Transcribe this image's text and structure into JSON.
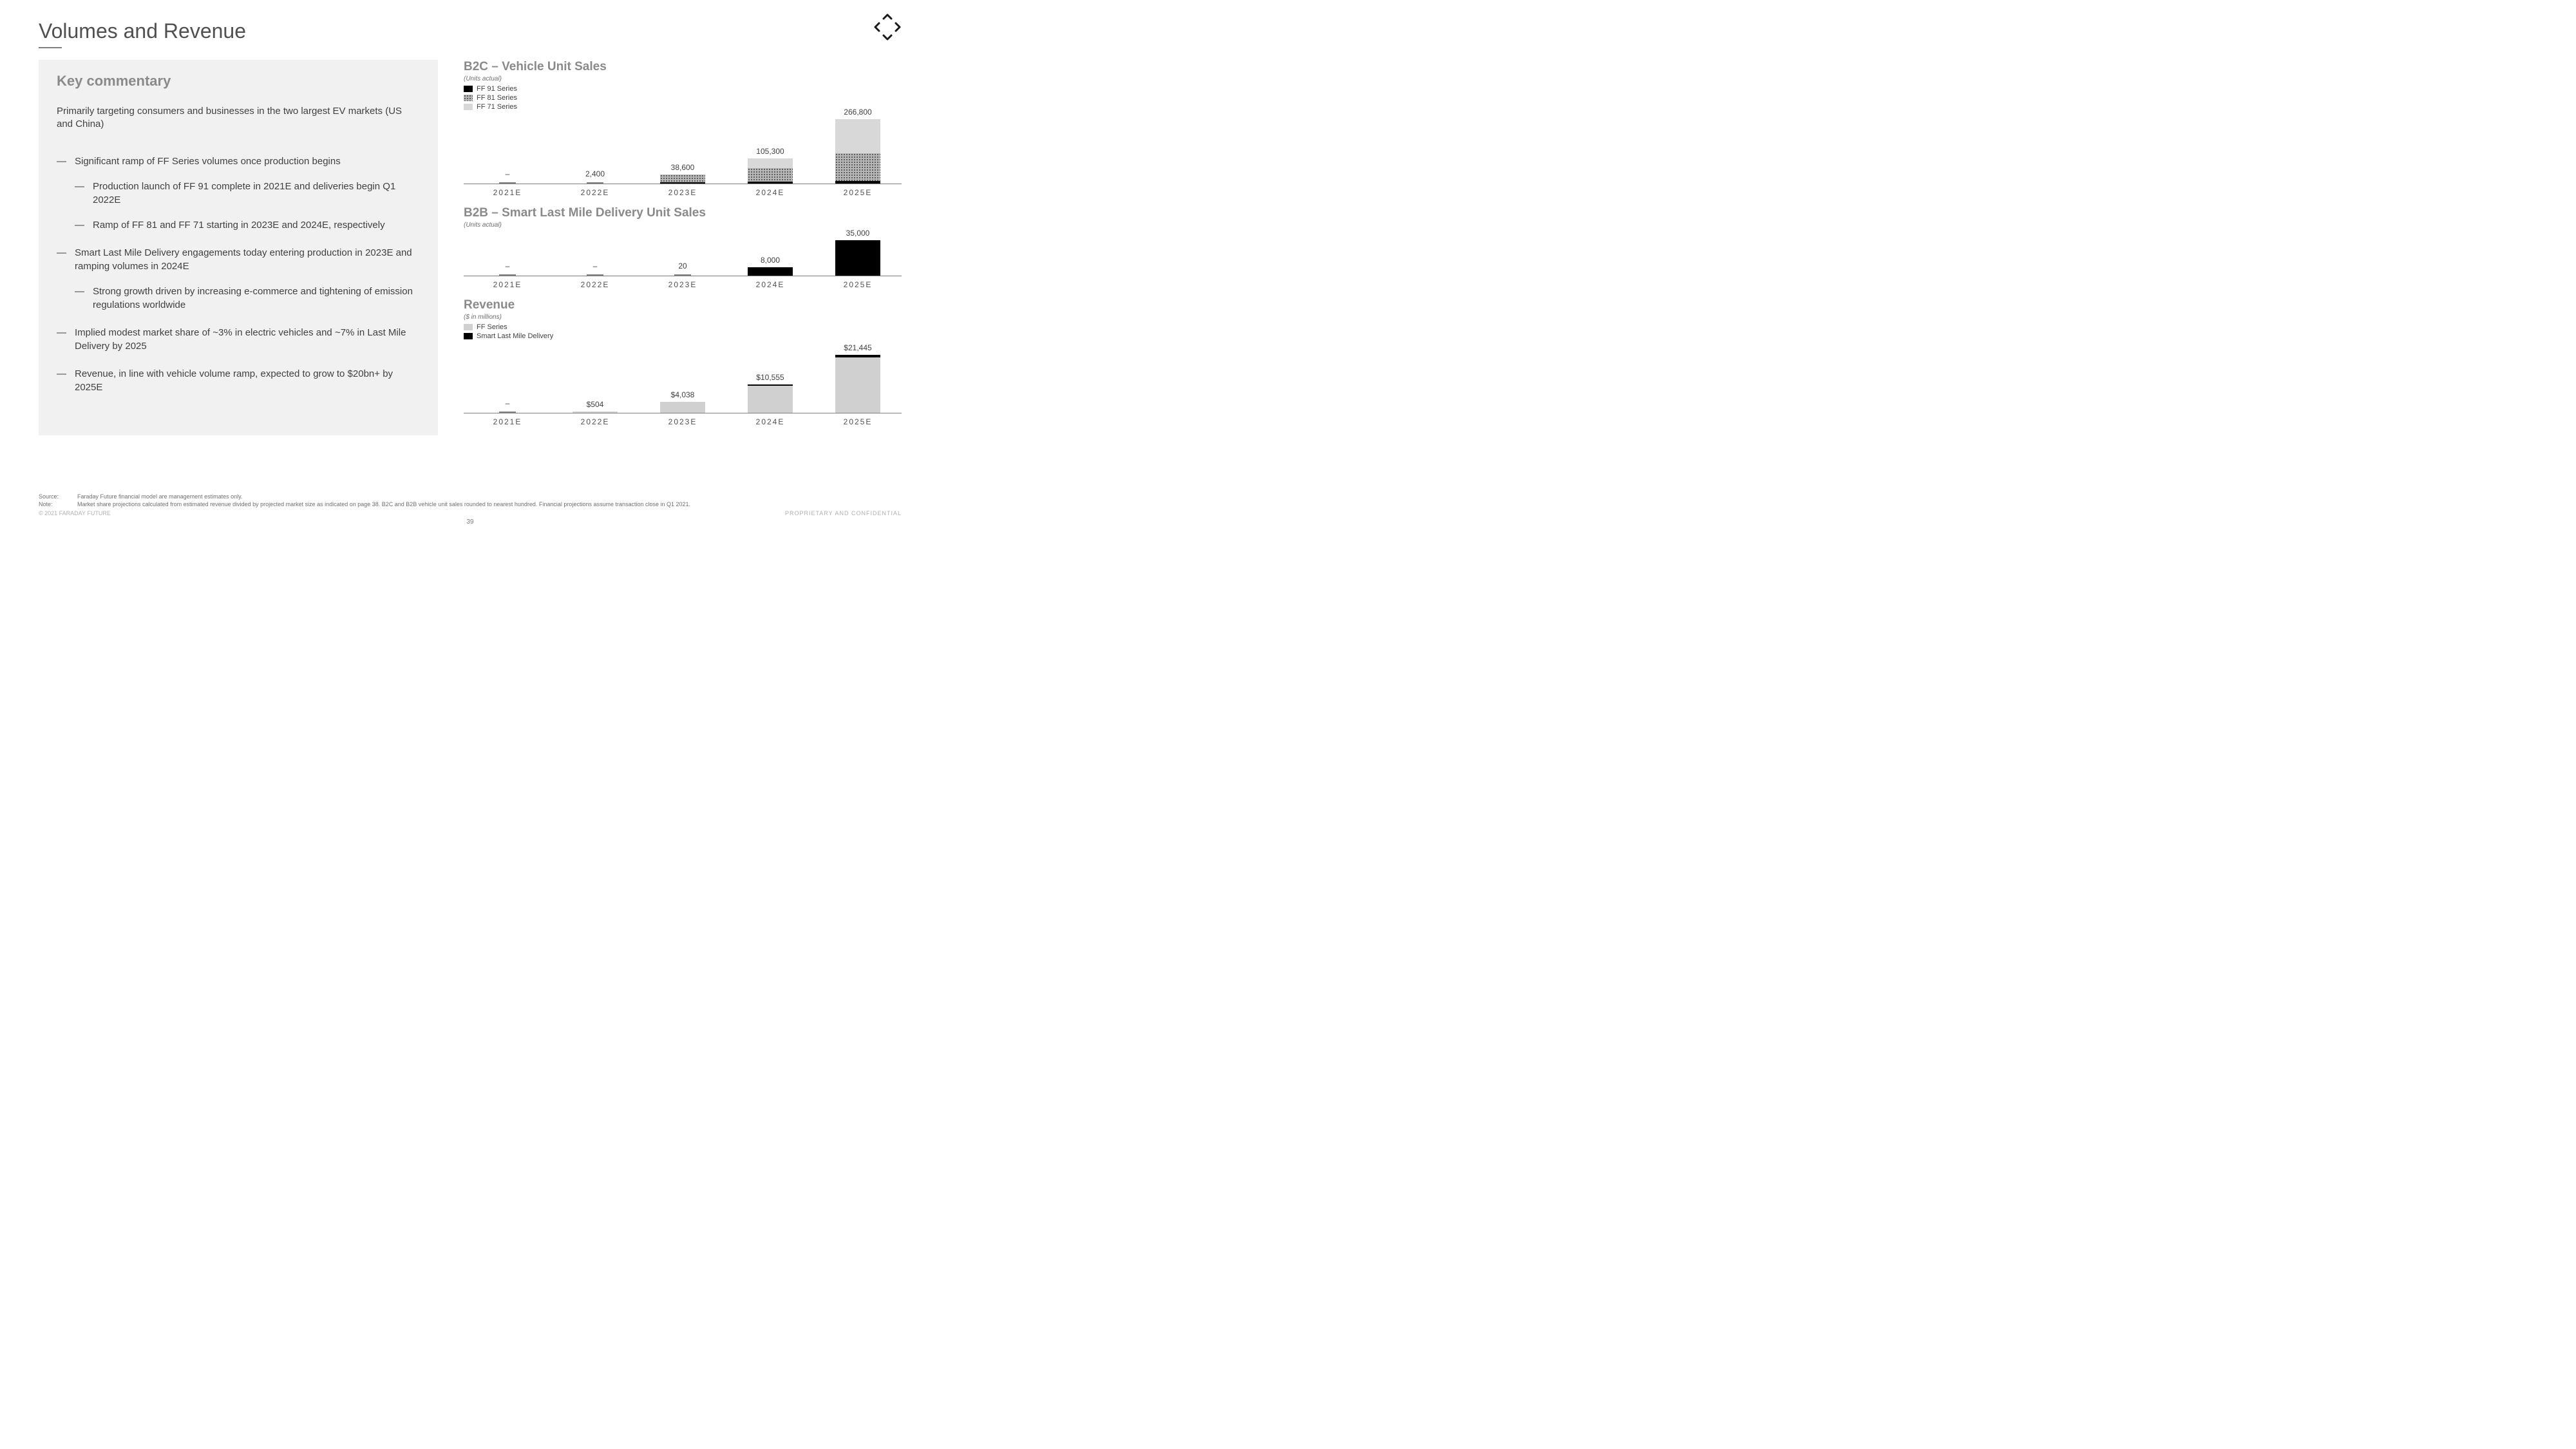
{
  "title": "Volumes and Revenue",
  "page_number": "39",
  "logo_color": "#1a1a1a",
  "left": {
    "heading": "Key commentary",
    "intro": "Primarily targeting consumers and businesses in the two largest EV markets (US and China)",
    "bullets": [
      {
        "text": "Significant ramp of FF Series volumes once production begins",
        "sub": [
          "Production launch of FF 91 complete in 2021E and deliveries begin Q1 2022E",
          "Ramp of FF 81 and FF 71 starting in 2023E and 2024E, respectively"
        ]
      },
      {
        "text": "Smart Last Mile Delivery engagements today entering production in 2023E and ramping volumes in 2024E",
        "sub": [
          "Strong growth driven by increasing e-commerce and tightening of emission regulations worldwide"
        ]
      },
      {
        "text": "Implied modest market share of ~3% in electric vehicles and ~7% in Last Mile Delivery by 2025",
        "sub": []
      },
      {
        "text": "Revenue, in line with vehicle volume ramp, expected to grow to $20bn+ by 2025E",
        "sub": []
      }
    ]
  },
  "charts": {
    "categories": [
      "2021E",
      "2022E",
      "2023E",
      "2024E",
      "2025E"
    ],
    "b2c": {
      "title": "B2C – Vehicle Unit Sales",
      "subtitle": "(Units actual)",
      "legend": [
        {
          "label": "FF 91 Series",
          "color": "#000000",
          "pattern": "solid"
        },
        {
          "label": "FF 81 Series",
          "color": "#b8b8b8",
          "pattern": "dots"
        },
        {
          "label": "FF 71 Series",
          "color": "#d8d8d8",
          "pattern": "solid"
        }
      ],
      "labels": [
        "–",
        "2,400",
        "38,600",
        "105,300",
        "266,800"
      ],
      "ymax": 266800,
      "series": [
        {
          "key": "ff91",
          "color": "#000000",
          "pattern": "solid",
          "values": [
            0,
            2400,
            5000,
            8000,
            10000
          ]
        },
        {
          "key": "ff81",
          "color": "#b8b8b8",
          "pattern": "dots",
          "values": [
            0,
            0,
            33600,
            55000,
            115000
          ]
        },
        {
          "key": "ff71",
          "color": "#d8d8d8",
          "pattern": "solid",
          "values": [
            0,
            0,
            0,
            42300,
            141800
          ]
        }
      ]
    },
    "b2b": {
      "title": "B2B – Smart Last Mile Delivery Unit Sales",
      "subtitle": "(Units actual)",
      "labels": [
        "–",
        "–",
        "20",
        "8,000",
        "35,000"
      ],
      "ymax": 35000,
      "color": "#000000",
      "values": [
        0,
        0,
        20,
        8000,
        35000
      ]
    },
    "revenue": {
      "title": "Revenue",
      "subtitle": "($ in millions)",
      "legend": [
        {
          "label": "FF Series",
          "color": "#d0d0d0"
        },
        {
          "label": "Smart Last Mile Delivery",
          "color": "#000000"
        }
      ],
      "labels": [
        "–",
        "$504",
        "$4,038",
        "$10,555",
        "$21,445"
      ],
      "ymax": 21445,
      "series": [
        {
          "key": "ff",
          "color": "#d0d0d0",
          "values": [
            0,
            504,
            4030,
            10100,
            20400
          ]
        },
        {
          "key": "slmd",
          "color": "#000000",
          "values": [
            0,
            0,
            8,
            455,
            1045
          ]
        }
      ]
    }
  },
  "footer": {
    "source_label": "Source:",
    "source_text": "Faraday Future financial model are management estimates only.",
    "note_label": "Note:",
    "note_text": "Market share projections calculated from estimated revenue divided by projected market size as indicated on page 38. B2C and B2B vehicle unit sales rounded to nearest hundred. Financial projections assume transaction close in Q1 2021.",
    "copyright": "© 2021 FARADAY FUTURE",
    "confidential": "PROPRIETARY  AND CONFIDENTIAL"
  }
}
